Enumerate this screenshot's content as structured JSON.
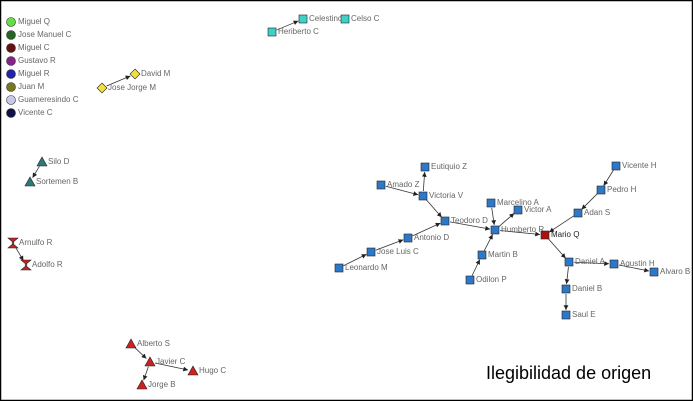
{
  "legend": [
    "Miguel Q",
    "Jose Manuel C",
    "Miguel C",
    "Gustavo R",
    "Miguel R",
    "Juan M",
    "Guameresindo C",
    "Vicente C"
  ],
  "nodes": [
    {
      "label": "Celestino"
    },
    {
      "label": "Celso C"
    },
    {
      "label": "Heriberto C"
    },
    {
      "label": "David M"
    },
    {
      "label": "Jose Jorge M"
    },
    {
      "label": "Silo D"
    },
    {
      "label": "Sortemen B"
    },
    {
      "label": "Arnulfo R"
    },
    {
      "label": "Adolfo R"
    },
    {
      "label": "Alberto S"
    },
    {
      "label": "Javier C"
    },
    {
      "label": "Hugo C"
    },
    {
      "label": "Jorge B"
    },
    {
      "label": "Eutiquio Z"
    },
    {
      "label": "Amado Z"
    },
    {
      "label": "Victoria V"
    },
    {
      "label": "Teodoro D"
    },
    {
      "label": "Antonio D"
    },
    {
      "label": "Jose Luis C"
    },
    {
      "label": "Leonardo M"
    },
    {
      "label": "Marcelino A"
    },
    {
      "label": "Victor A"
    },
    {
      "label": "Humberto R"
    },
    {
      "label": "Martin B"
    },
    {
      "label": "Odilon P"
    },
    {
      "label": "Mario Q"
    },
    {
      "label": "Adan S"
    },
    {
      "label": "Pedro H"
    },
    {
      "label": "Vicente H"
    },
    {
      "label": "Daniel A"
    },
    {
      "label": "Agustin H"
    },
    {
      "label": "Alvaro B"
    },
    {
      "label": "Daniel B"
    },
    {
      "label": "Saul E"
    }
  ],
  "caption": "Ilegibilidad de origen"
}
